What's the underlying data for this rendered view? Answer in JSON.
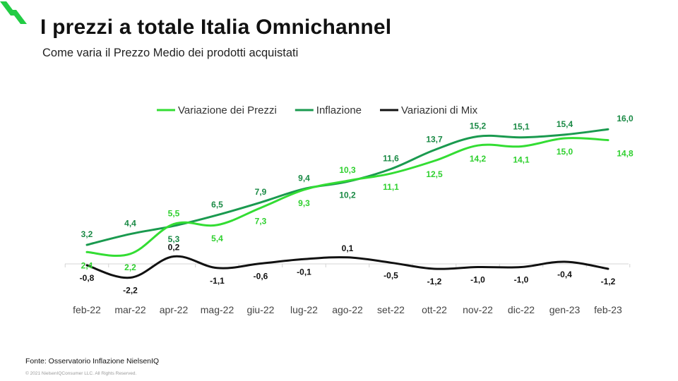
{
  "title": "I prezzi a totale Italia Omnichannel",
  "subtitle": "Come varia il Prezzo Medio dei prodotti acquistati",
  "source": "Fonte: Osservatorio Inflazione NielsenIQ",
  "copyright": "© 2021 NielsenIQConsumer LLC. All Rights Reserved.",
  "logo": {
    "icon": "nielseniq-logo-icon",
    "color": "#22cc44"
  },
  "chart_data": {
    "type": "line",
    "title": "",
    "xlabel": "",
    "ylabel": "",
    "grid": false,
    "legend_position": "top",
    "categories": [
      "feb-22",
      "mar-22",
      "apr-22",
      "mag-22",
      "giu-22",
      "lug-22",
      "ago-22",
      "set-22",
      "ott-22",
      "nov-22",
      "dic-22",
      "gen-23",
      "feb-23"
    ],
    "category_labels": [
      "feb-22",
      "mar-22",
      "apr-22",
      "mag-22",
      "giu-22",
      "lug-22",
      "ago-22",
      "set-22",
      "ott-22",
      "nov-22",
      "dic-22",
      "gen-23",
      "feb-23"
    ],
    "series": [
      {
        "name": "Variazione dei Prezzi",
        "color": "#33dd33",
        "values": [
          2.4,
          2.2,
          5.5,
          5.4,
          7.3,
          9.3,
          10.3,
          11.1,
          12.5,
          14.2,
          14.1,
          15.0,
          14.8
        ],
        "labels": [
          "2,4",
          "2,2",
          "5,5",
          "5,4",
          "7,3",
          "9,3",
          "10,3",
          "11,1",
          "12,5",
          "14,2",
          "14,1",
          "15,0",
          "14,8"
        ]
      },
      {
        "name": "Inflazione",
        "color": "#1a9a4f",
        "values": [
          3.2,
          4.4,
          5.3,
          6.5,
          7.9,
          9.4,
          10.2,
          11.6,
          13.7,
          15.2,
          15.1,
          15.4,
          16.0
        ],
        "labels": [
          "3,2",
          "4,4",
          "5,3",
          "6,5",
          "7,9",
          "9,4",
          "10,2",
          "11,6",
          "13,7",
          "15,2",
          "15,1",
          "15,4",
          "16,0"
        ]
      },
      {
        "name": "Variazioni di Mix",
        "color": "#111111",
        "values": [
          -0.8,
          -2.2,
          0.2,
          -1.1,
          -0.6,
          -0.1,
          0.1,
          -0.5,
          -1.2,
          -1.0,
          -1.0,
          -0.4,
          -1.2
        ],
        "labels": [
          "-0,8",
          "-2,2",
          "0,2",
          "-1,1",
          "-0,6",
          "-0,1",
          "0,1",
          "-0,5",
          "-1,2",
          "-1,0",
          "-1,0",
          "-0,4",
          "-1,2"
        ]
      }
    ]
  }
}
